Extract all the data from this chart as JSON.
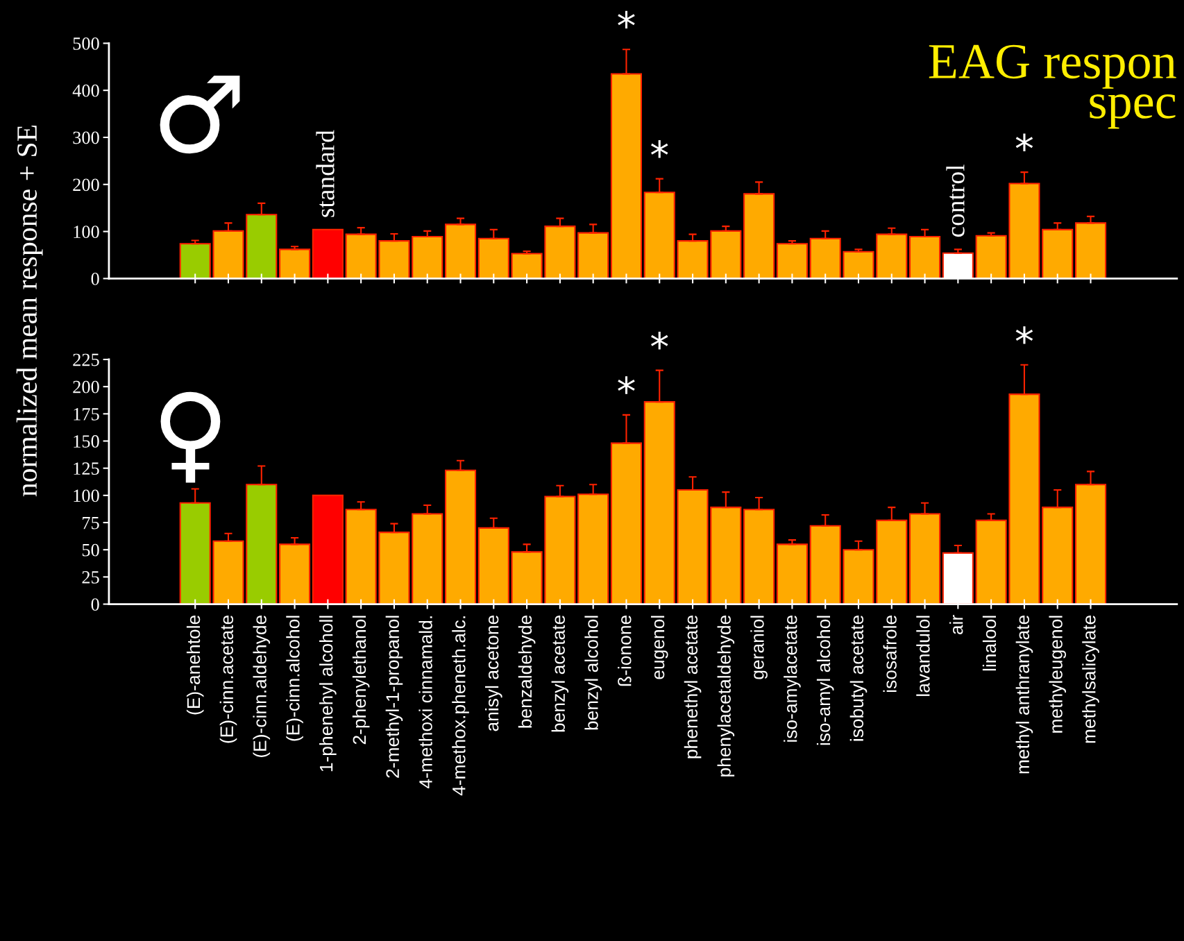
{
  "chart_data": [
    {
      "type": "bar",
      "title": "EAG respon",
      "subtitle": "spec",
      "ylabel": "normalized mean response + SE",
      "categories": [
        "(E)-anehtole",
        "(E)-cinn.acetate",
        "(E)-cinn.aldehyde",
        "(E)-cinn.alcohol",
        "1-phenehyl alcoholl",
        "2-phenylethanol",
        "2-methyl-1-propanol",
        "4-methoxi cinnamald.",
        "4-methox.pheneth.alc.",
        "anisyl acetone",
        "benzaldehyde",
        "benzyl acetate",
        "benzyl alcohol",
        "ß-ionone",
        "eugenol",
        "phenethyl acetate",
        "phenylacetaldehyde",
        "geraniol",
        "iso-amylacetate",
        "iso-amyl alcohol",
        "isobutyl acetate",
        "isosafrole",
        "lavandulol",
        "air",
        "linalool",
        "methyl anthranylate",
        "methyleugenol",
        "methylsalicylate"
      ],
      "values": [
        74,
        101,
        136,
        62,
        104,
        94,
        80,
        89,
        115,
        85,
        53,
        111,
        97,
        435,
        183,
        80,
        101,
        180,
        74,
        85,
        57,
        94,
        89,
        54,
        91,
        202,
        104,
        118
      ],
      "errors": [
        [
          74,
          81
        ],
        [
          101,
          118
        ],
        [
          136,
          160
        ],
        [
          62,
          68
        ],
        null,
        [
          94,
          108
        ],
        [
          80,
          95
        ],
        [
          89,
          101
        ],
        [
          115,
          128
        ],
        [
          85,
          104
        ],
        [
          53,
          58
        ],
        [
          111,
          128
        ],
        [
          97,
          115
        ],
        [
          435,
          487
        ],
        [
          183,
          212
        ],
        [
          80,
          94
        ],
        [
          101,
          111
        ],
        [
          180,
          205
        ],
        [
          74,
          80
        ],
        [
          85,
          101
        ],
        [
          57,
          62
        ],
        [
          94,
          107
        ],
        [
          89,
          104
        ],
        [
          54,
          62
        ],
        [
          91,
          97
        ],
        [
          202,
          226
        ],
        [
          104,
          118
        ],
        [
          118,
          132
        ]
      ],
      "colors": [
        "#99cc00",
        "#ffaa00",
        "#99cc00",
        "#ffaa00",
        "#ff0000",
        "#ffaa00",
        "#ffaa00",
        "#ffaa00",
        "#ffaa00",
        "#ffaa00",
        "#ffaa00",
        "#ffaa00",
        "#ffaa00",
        "#ffaa00",
        "#ffaa00",
        "#ffaa00",
        "#ffaa00",
        "#ffaa00",
        "#ffaa00",
        "#ffaa00",
        "#ffaa00",
        "#ffaa00",
        "#ffaa00",
        "#ffffff",
        "#ffaa00",
        "#ffaa00",
        "#ffaa00",
        "#ffaa00"
      ],
      "ylim": [
        0,
        500
      ],
      "yticks": [
        0,
        100,
        200,
        300,
        400,
        500
      ],
      "tick_labels": "y",
      "grid": false,
      "legend": false,
      "annotations": [
        "♂",
        {
          "text": "standard",
          "x": "1-phenehyl alcoholl",
          "y": 104
        },
        {
          "text": "control",
          "x": "air",
          "y": 62
        },
        {
          "text": "*",
          "x": "ß-ionone",
          "y": 487
        },
        {
          "text": "*",
          "x": "eugenol",
          "y": 212
        },
        {
          "text": "*",
          "x": "methyl anthranylate",
          "y": 226
        }
      ]
    },
    {
      "type": "bar",
      "categories": [
        "(E)-anehtole",
        "(E)-cinn.acetate",
        "(E)-cinn.aldehyde",
        "(E)-cinn.alcohol",
        "1-phenehyl alcoholl",
        "2-phenylethanol",
        "2-methyl-1-propanol",
        "4-methoxi cinnamald.",
        "4-methox.pheneth.alc.",
        "anisyl acetone",
        "benzaldehyde",
        "benzyl acetate",
        "benzyl alcohol",
        "ß-ionone",
        "eugenol",
        "phenethyl acetate",
        "phenylacetaldehyde",
        "geraniol",
        "iso-amylacetate",
        "iso-amyl alcohol",
        "isobutyl acetate",
        "isosafrole",
        "lavandulol",
        "air",
        "linalool",
        "methyl anthranylate",
        "methyleugenol",
        "methylsalicylate"
      ],
      "values": [
        93,
        58,
        110,
        55,
        100,
        87,
        66,
        83,
        123,
        70,
        48,
        99,
        101,
        148,
        186,
        105,
        89,
        87,
        55,
        72,
        50,
        77,
        83,
        47,
        77,
        193,
        89,
        110
      ],
      "errors": [
        [
          93,
          106
        ],
        [
          58,
          65
        ],
        [
          110,
          127
        ],
        [
          55,
          61
        ],
        null,
        [
          87,
          94
        ],
        [
          66,
          74
        ],
        [
          83,
          91
        ],
        [
          123,
          132
        ],
        [
          70,
          79
        ],
        [
          48,
          55
        ],
        [
          99,
          109
        ],
        [
          101,
          110
        ],
        [
          148,
          174
        ],
        [
          186,
          215
        ],
        [
          105,
          117
        ],
        [
          89,
          103
        ],
        [
          87,
          98
        ],
        [
          55,
          59
        ],
        [
          72,
          82
        ],
        [
          50,
          58
        ],
        [
          77,
          89
        ],
        [
          83,
          93
        ],
        [
          47,
          54
        ],
        [
          77,
          83
        ],
        [
          193,
          220
        ],
        [
          89,
          105
        ],
        [
          110,
          122
        ]
      ],
      "colors": [
        "#99cc00",
        "#ffaa00",
        "#99cc00",
        "#ffaa00",
        "#ff0000",
        "#ffaa00",
        "#ffaa00",
        "#ffaa00",
        "#ffaa00",
        "#ffaa00",
        "#ffaa00",
        "#ffaa00",
        "#ffaa00",
        "#ffaa00",
        "#ffaa00",
        "#ffaa00",
        "#ffaa00",
        "#ffaa00",
        "#ffaa00",
        "#ffaa00",
        "#ffaa00",
        "#ffaa00",
        "#ffaa00",
        "#ffffff",
        "#ffaa00",
        "#ffaa00",
        "#ffaa00",
        "#ffaa00"
      ],
      "ylim": [
        0,
        225
      ],
      "yticks": [
        0,
        25,
        50,
        75,
        100,
        125,
        150,
        175,
        200,
        225
      ],
      "grid": false,
      "legend": false,
      "annotations": [
        "♀",
        {
          "text": "*",
          "x": "ß-ionone",
          "y": 174
        },
        {
          "text": "*",
          "x": "eugenol",
          "y": 215
        },
        {
          "text": "*",
          "x": "methyl anthranylate",
          "y": 220
        }
      ]
    }
  ]
}
